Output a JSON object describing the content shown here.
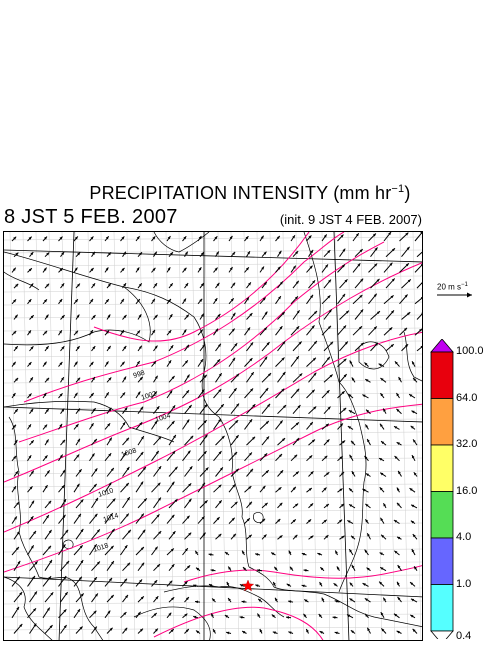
{
  "header": {
    "title": "PRECIPITATION INTENSITY (mm hr",
    "title_exp": "−1",
    "title_close": ")",
    "valid_time": "8 JST 5 FEB. 2007",
    "init_time": "(init. 9 JST 4 FEB. 2007)"
  },
  "reference_vector": {
    "label": "20 m s",
    "label_exp": "−1"
  },
  "colorbar": {
    "levels": [
      "100.0",
      "64.0",
      "32.0",
      "16.0",
      "4.0",
      "1.0",
      "0.4"
    ],
    "colors": [
      "#e8000d",
      "#ffa040",
      "#ffff66",
      "#55dd55",
      "#6666ff",
      "#55ffff"
    ],
    "over_color": "#c000f0",
    "under_color": "#ffffff"
  },
  "map": {
    "marker": {
      "type": "red-star",
      "color": "#ff0000"
    },
    "contour_color": "#ff0080",
    "isobar_labels": [
      "998",
      "1002",
      "1004",
      "1008",
      "1010",
      "1014",
      "1018"
    ]
  }
}
